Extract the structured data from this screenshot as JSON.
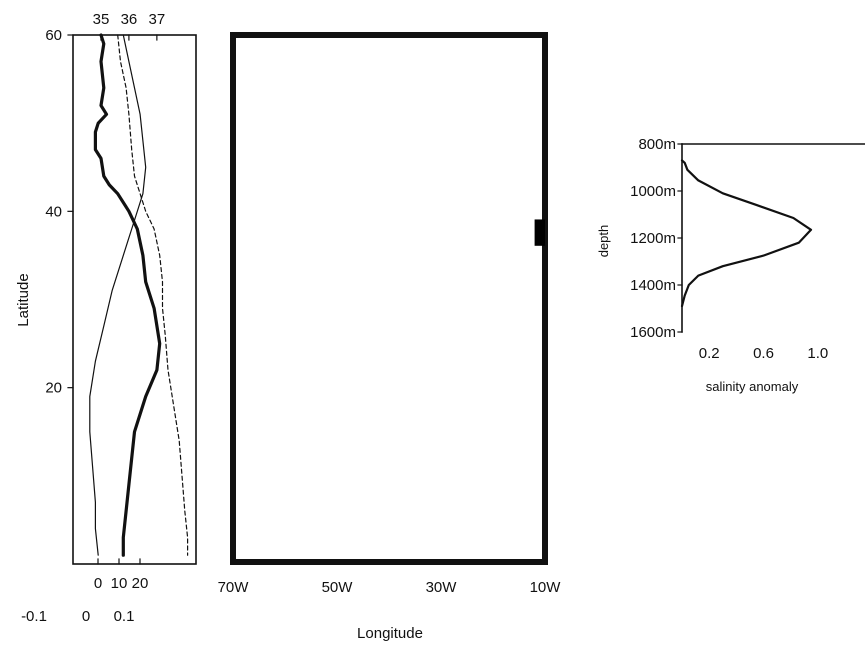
{
  "chart_data": [
    {
      "id": "latitude_profiles",
      "type": "line",
      "ylabel": "Latitude",
      "y_ticks": [
        "60",
        "40",
        "20"
      ],
      "ylim": [
        0,
        60
      ],
      "top_ticks": [
        "35",
        "36",
        "37"
      ],
      "bottom_ticks_row1": [
        "0",
        "10",
        "20"
      ],
      "bottom_ticks_row2": [
        "-0.1",
        "0",
        "0.1"
      ],
      "series": [
        {
          "style": "thick",
          "points": [
            [
              35.0,
              60
            ],
            [
              35.1,
              59
            ],
            [
              35.0,
              57
            ],
            [
              35.1,
              54
            ],
            [
              35.0,
              52
            ],
            [
              35.2,
              51
            ],
            [
              34.9,
              50
            ],
            [
              34.8,
              49
            ],
            [
              34.8,
              47
            ],
            [
              35.0,
              46
            ],
            [
              35.1,
              44
            ],
            [
              35.3,
              43
            ],
            [
              35.6,
              42
            ],
            [
              36.0,
              40
            ],
            [
              36.3,
              38
            ],
            [
              36.5,
              35
            ],
            [
              36.6,
              32
            ],
            [
              36.9,
              29
            ],
            [
              37.1,
              25
            ],
            [
              37.0,
              22
            ],
            [
              36.6,
              19
            ],
            [
              36.2,
              15
            ],
            [
              36.1,
              12
            ],
            [
              36.0,
              9
            ],
            [
              35.9,
              6
            ],
            [
              35.8,
              3
            ],
            [
              35.8,
              1
            ]
          ]
        },
        {
          "style": "dashed",
          "points": [
            [
              35.6,
              60
            ],
            [
              35.7,
              57
            ],
            [
              35.9,
              54
            ],
            [
              36.0,
              51
            ],
            [
              36.1,
              47
            ],
            [
              36.2,
              44
            ],
            [
              36.4,
              42
            ],
            [
              36.6,
              40
            ],
            [
              36.9,
              38
            ],
            [
              37.1,
              35
            ],
            [
              37.2,
              32
            ],
            [
              37.2,
              29
            ],
            [
              37.3,
              26
            ],
            [
              37.4,
              22
            ],
            [
              37.6,
              18
            ],
            [
              37.8,
              14
            ],
            [
              37.9,
              10
            ],
            [
              38.0,
              6
            ],
            [
              38.1,
              3
            ],
            [
              38.1,
              1
            ]
          ]
        },
        {
          "style": "thin",
          "points": [
            [
              35.8,
              60
            ],
            [
              36.0,
              57
            ],
            [
              36.2,
              54
            ],
            [
              36.4,
              51
            ],
            [
              36.5,
              48
            ],
            [
              36.6,
              45
            ],
            [
              36.5,
              42
            ],
            [
              36.1,
              38
            ],
            [
              35.8,
              35
            ],
            [
              35.4,
              31
            ],
            [
              35.1,
              27
            ],
            [
              34.8,
              23
            ],
            [
              34.6,
              19
            ],
            [
              34.6,
              15
            ],
            [
              34.7,
              11
            ],
            [
              34.8,
              7
            ],
            [
              34.8,
              4
            ],
            [
              34.9,
              1
            ]
          ]
        }
      ]
    },
    {
      "id": "region_map",
      "type": "map",
      "xlabel": "Longitude",
      "x_ticks": [
        "70W",
        "50W",
        "30W",
        "10W"
      ],
      "xlim_deg_west": [
        70,
        10
      ],
      "ylim": [
        0,
        60
      ],
      "source_marker": {
        "lon_w": [
          12,
          10
        ],
        "lat": [
          36,
          39
        ],
        "color": "#000000"
      }
    },
    {
      "id": "salinity_profile",
      "type": "line",
      "xlabel": "salinity anomaly",
      "ylabel": "depth",
      "x_ticks": [
        "0.2",
        "0.6",
        "1.0"
      ],
      "y_ticks": [
        "800m",
        "1000m",
        "1200m",
        "1400m",
        "1600m"
      ],
      "xlim": [
        0,
        1.2
      ],
      "ylim": [
        800,
        1600
      ],
      "points": [
        [
          0.0,
          870
        ],
        [
          0.02,
          880
        ],
        [
          0.04,
          910
        ],
        [
          0.12,
          955
        ],
        [
          0.3,
          1010
        ],
        [
          0.55,
          1060
        ],
        [
          0.82,
          1115
        ],
        [
          0.95,
          1165
        ],
        [
          0.86,
          1220
        ],
        [
          0.6,
          1275
        ],
        [
          0.3,
          1320
        ],
        [
          0.12,
          1360
        ],
        [
          0.05,
          1400
        ],
        [
          0.02,
          1445
        ],
        [
          0.0,
          1490
        ]
      ]
    }
  ]
}
